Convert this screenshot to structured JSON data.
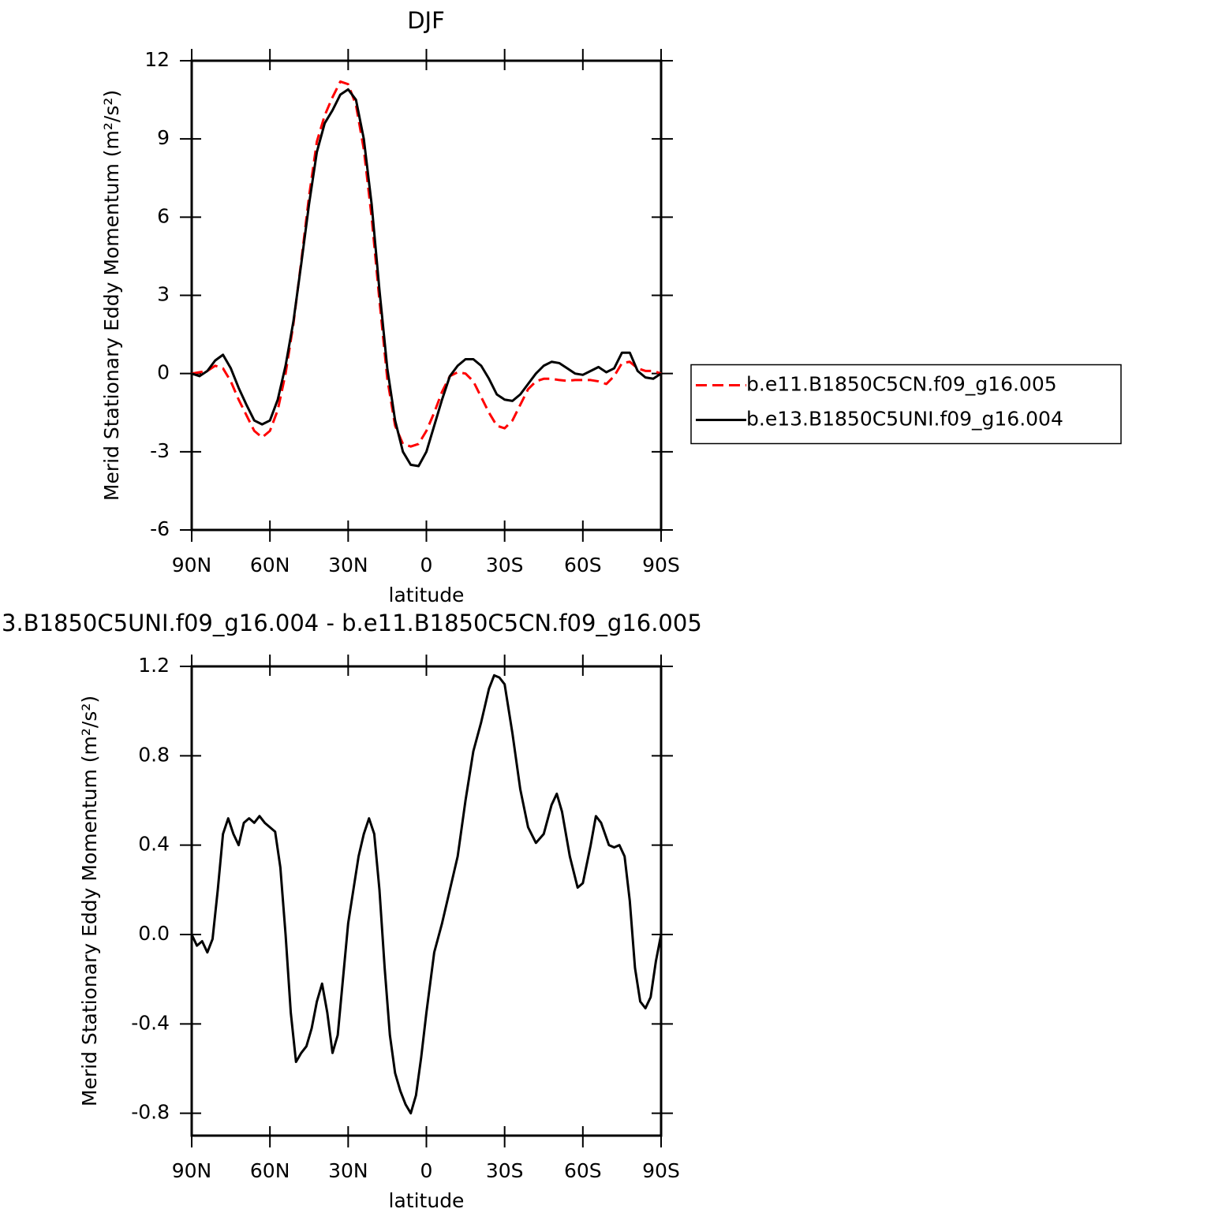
{
  "chart_data": [
    {
      "type": "line",
      "title": "DJF",
      "xlabel": "latitude",
      "ylabel": "Merid Stationary Eddy Momentum (m²/s²)",
      "x": [
        90,
        87,
        84,
        81,
        78,
        75,
        72,
        69,
        66,
        63,
        60,
        57,
        54,
        51,
        48,
        45,
        42,
        39,
        36,
        33,
        30,
        27,
        24,
        21,
        18,
        15,
        12,
        9,
        6,
        3,
        0,
        -3,
        -6,
        -9,
        -12,
        -15,
        -18,
        -21,
        -24,
        -27,
        -30,
        -33,
        -36,
        -39,
        -42,
        -45,
        -48,
        -51,
        -54,
        -57,
        -60,
        -63,
        -66,
        -69,
        -72,
        -75,
        -78,
        -81,
        -84,
        -87,
        -90
      ],
      "series": [
        {
          "name": "b.e11.B1850C5CN.f09_g16.005",
          "color": "#ff0000",
          "linestyle": "dashed",
          "values": [
            0,
            0.05,
            0.1,
            0.3,
            0.2,
            -0.3,
            -1.0,
            -1.6,
            -2.2,
            -2.45,
            -2.2,
            -1.4,
            0.0,
            1.9,
            4.3,
            6.8,
            8.9,
            9.9,
            10.6,
            11.2,
            11.1,
            10.3,
            8.6,
            6.0,
            2.8,
            -0.2,
            -2.0,
            -2.7,
            -2.8,
            -2.7,
            -2.2,
            -1.5,
            -0.7,
            -0.1,
            0.05,
            0.0,
            -0.3,
            -0.9,
            -1.5,
            -2.0,
            -2.1,
            -1.8,
            -1.2,
            -0.6,
            -0.3,
            -0.2,
            -0.2,
            -0.25,
            -0.28,
            -0.25,
            -0.25,
            -0.25,
            -0.3,
            -0.4,
            -0.1,
            0.4,
            0.45,
            0.2,
            0.1,
            0.1,
            0.0
          ]
        },
        {
          "name": "b.e13.B1850C5UNI.f09_g16.004",
          "color": "#000000",
          "linestyle": "solid",
          "values": [
            0,
            -0.1,
            0.1,
            0.5,
            0.72,
            0.2,
            -0.55,
            -1.2,
            -1.8,
            -1.95,
            -1.8,
            -1.0,
            0.3,
            2.0,
            4.2,
            6.5,
            8.5,
            9.6,
            10.1,
            10.7,
            10.9,
            10.5,
            9.0,
            6.5,
            3.2,
            0.2,
            -1.8,
            -3.0,
            -3.5,
            -3.55,
            -3.0,
            -2.0,
            -1.0,
            -0.1,
            0.3,
            0.55,
            0.55,
            0.3,
            -0.2,
            -0.8,
            -1.0,
            -1.05,
            -0.8,
            -0.4,
            0.0,
            0.3,
            0.45,
            0.4,
            0.2,
            0.0,
            -0.05,
            0.1,
            0.25,
            0.05,
            0.2,
            0.8,
            0.8,
            0.1,
            -0.15,
            -0.2,
            0.0
          ]
        }
      ],
      "xlim": [
        90,
        -90
      ],
      "xticks": [
        {
          "value": 90,
          "label": "90N"
        },
        {
          "value": 60,
          "label": "60N"
        },
        {
          "value": 30,
          "label": "30N"
        },
        0,
        {
          "value": -30,
          "label": "30S"
        },
        {
          "value": -60,
          "label": "60S"
        },
        {
          "value": -90,
          "label": "90S"
        }
      ],
      "ylim": [
        -6,
        12
      ],
      "yticks": [
        -6,
        -3,
        0,
        3,
        6,
        9,
        12
      ],
      "legend": "right"
    },
    {
      "type": "line",
      "title": "3.B1850C5UNI.f09_g16.004 - b.e11.B1850C5CN.f09_g16.005",
      "xlabel": "latitude",
      "ylabel": "Merid Stationary Eddy Momentum (m²/s²)",
      "x": [
        90,
        88,
        86,
        84,
        82,
        80,
        78,
        76,
        74,
        72,
        70,
        68,
        66,
        64,
        62,
        60,
        58,
        56,
        54,
        52,
        50,
        48,
        46,
        44,
        42,
        40,
        38,
        36,
        34,
        32,
        30,
        28,
        26,
        24,
        22,
        20,
        18,
        16,
        14,
        12,
        10,
        8,
        6,
        4,
        2,
        0,
        -3,
        -6,
        -9,
        -12,
        -15,
        -18,
        -21,
        -24,
        -26,
        -28,
        -30,
        -33,
        -36,
        -39,
        -42,
        -45,
        -48,
        -50,
        -52,
        -55,
        -58,
        -60,
        -63,
        -65,
        -67,
        -70,
        -72,
        -74,
        -76,
        -78,
        -80,
        -82,
        -84,
        -86,
        -88,
        -90
      ],
      "values": [
        0,
        -0.05,
        -0.03,
        -0.08,
        -0.02,
        0.2,
        0.45,
        0.52,
        0.45,
        0.4,
        0.5,
        0.52,
        0.5,
        0.53,
        0.5,
        0.48,
        0.46,
        0.3,
        0.0,
        -0.35,
        -0.57,
        -0.53,
        -0.5,
        -0.42,
        -0.3,
        -0.22,
        -0.35,
        -0.53,
        -0.45,
        -0.2,
        0.05,
        0.2,
        0.35,
        0.45,
        0.52,
        0.45,
        0.2,
        -0.15,
        -0.45,
        -0.62,
        -0.7,
        -0.76,
        -0.8,
        -0.72,
        -0.55,
        -0.35,
        -0.08,
        0.05,
        0.2,
        0.35,
        0.6,
        0.82,
        0.95,
        1.1,
        1.16,
        1.15,
        1.12,
        0.9,
        0.65,
        0.48,
        0.41,
        0.45,
        0.58,
        0.63,
        0.55,
        0.35,
        0.21,
        0.23,
        0.4,
        0.53,
        0.5,
        0.4,
        0.39,
        0.4,
        0.35,
        0.15,
        -0.15,
        -0.3,
        -0.33,
        -0.28,
        -0.12,
        0.0
      ],
      "color": "#000000",
      "xlim": [
        90,
        -90
      ],
      "xticks": [
        {
          "value": 90,
          "label": "90N"
        },
        {
          "value": 60,
          "label": "60N"
        },
        {
          "value": 30,
          "label": "30N"
        },
        0,
        {
          "value": -30,
          "label": "30S"
        },
        {
          "value": -60,
          "label": "60S"
        },
        {
          "value": -90,
          "label": "90S"
        }
      ],
      "ylim": [
        -0.9,
        1.2
      ],
      "yticks": [
        -0.8,
        -0.4,
        {
          "value": 0,
          "label": "0.0"
        },
        0.4,
        0.8,
        1.2
      ]
    }
  ]
}
